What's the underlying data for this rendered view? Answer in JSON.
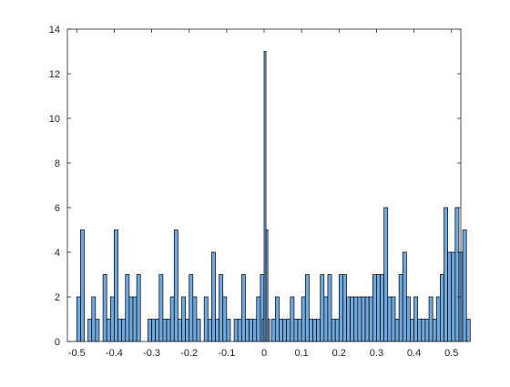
{
  "chart_data": {
    "type": "bar",
    "subtype": "histogram",
    "title": "",
    "xlabel": "",
    "ylabel": "",
    "xlim": [
      -0.525,
      0.525
    ],
    "ylim": [
      0,
      14
    ],
    "bin_start": -0.5,
    "bin_width": 0.01,
    "x_ticks": [
      -0.5,
      -0.4,
      -0.3,
      -0.2,
      -0.1,
      0,
      0.1,
      0.2,
      0.3,
      0.4,
      0.5
    ],
    "x_tick_labels": [
      "-0.5",
      "-0.4",
      "-0.3",
      "-0.2",
      "-0.1",
      "0",
      "0.1",
      "0.2",
      "0.3",
      "0.4",
      "0.5"
    ],
    "y_ticks": [
      0,
      2,
      4,
      6,
      8,
      10,
      12,
      14
    ],
    "y_tick_labels": [
      "0",
      "2",
      "4",
      "6",
      "8",
      "10",
      "12",
      "14"
    ],
    "grid": false,
    "legend": "none",
    "bar_color": "#6fa8dc",
    "bar_edge_color": "#000000",
    "values": [
      2,
      5,
      0,
      1,
      2,
      1,
      0,
      3,
      1,
      2,
      5,
      1,
      1,
      3,
      2,
      2,
      3,
      0,
      0,
      1,
      1,
      1,
      3,
      1,
      1,
      2,
      5,
      1,
      2,
      1,
      3,
      2,
      1,
      0,
      2,
      1,
      4,
      1,
      3,
      2,
      1,
      0,
      1,
      1,
      3,
      1,
      1,
      1,
      2,
      3,
      1,
      1,
      1,
      2,
      1,
      1,
      1,
      2,
      1,
      1,
      2,
      3,
      1,
      1,
      1,
      3,
      2,
      3,
      1,
      1,
      3,
      3,
      2,
      2,
      2,
      2,
      2,
      2,
      2,
      3,
      3,
      3,
      6,
      2,
      2,
      1,
      3,
      4,
      2,
      1,
      2,
      1,
      1,
      1,
      2,
      1,
      2,
      3,
      6,
      4,
      4,
      6,
      4,
      5,
      1,
      0,
      0,
      0,
      0,
      0,
      0,
      0,
      0,
      0,
      0,
      0,
      0,
      0,
      0,
      0,
      0,
      0,
      0,
      0,
      0,
      0,
      0,
      0,
      0,
      0,
      0
    ],
    "overrides": {
      "bins": [
        {
          "x": -0.005,
          "value": 1
        },
        {
          "x": 0.0,
          "value": 13
        },
        {
          "x": 0.005,
          "value": 5
        },
        {
          "x": 0.01,
          "value": 1
        }
      ]
    }
  }
}
